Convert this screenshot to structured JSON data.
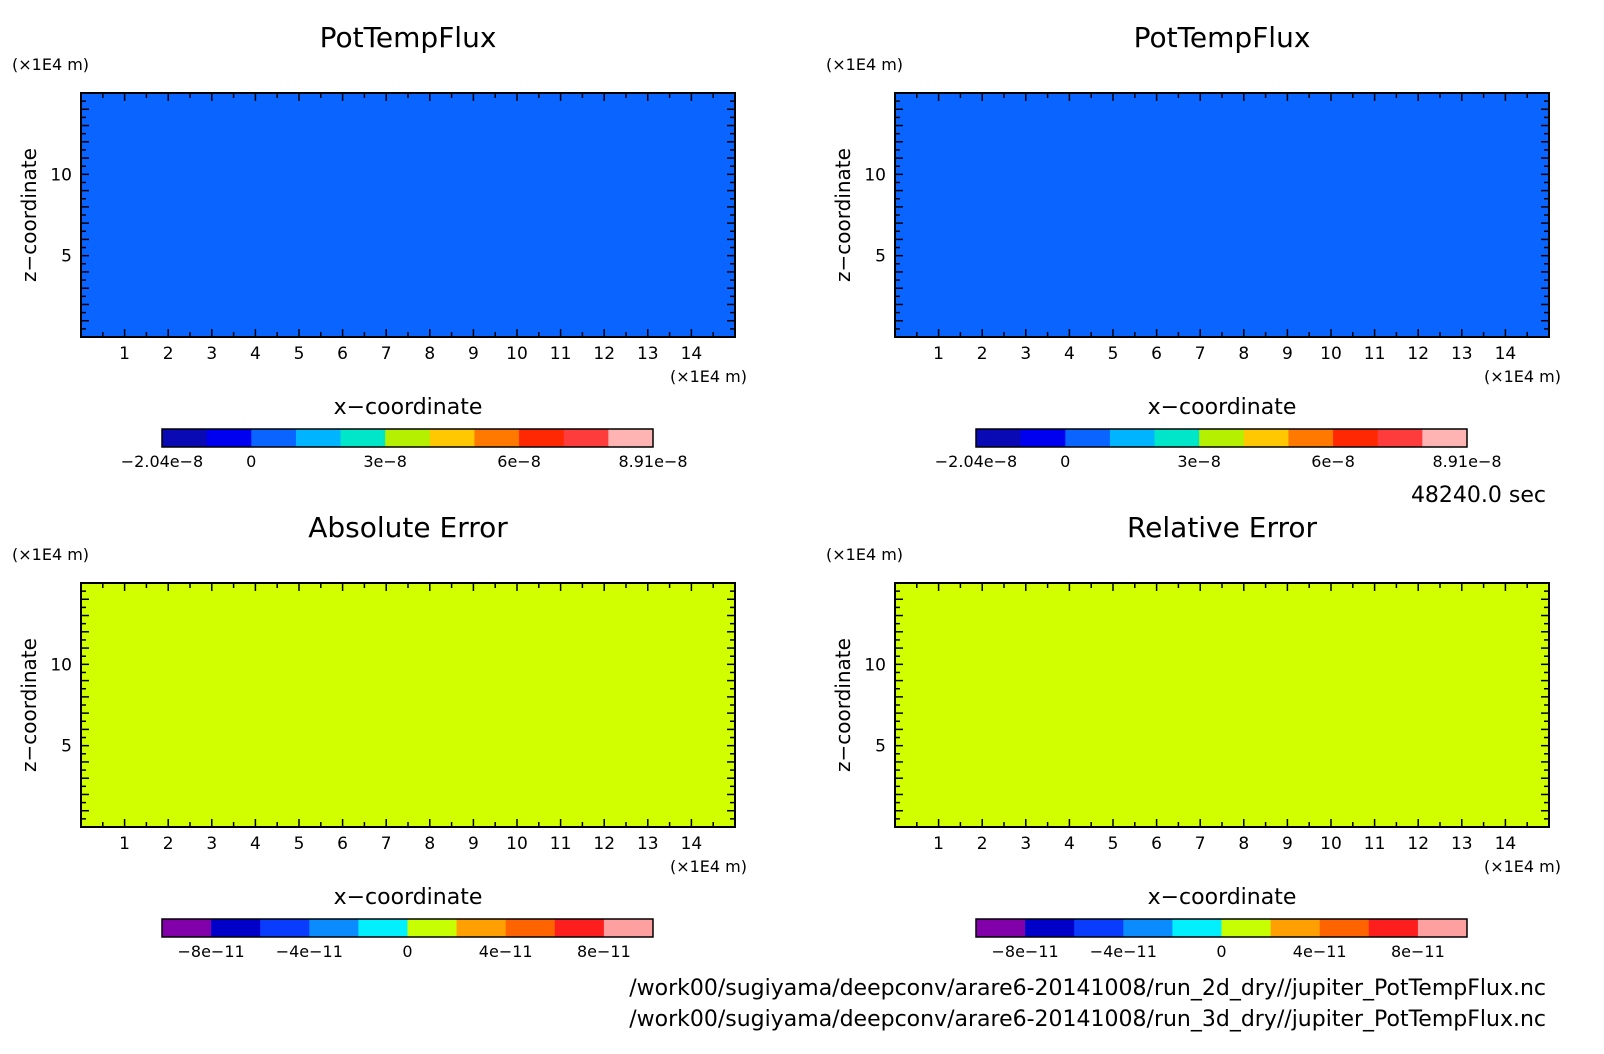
{
  "figure": {
    "time_label": "48240.0 sec",
    "files": [
      "/work00/sugiyama/deepconv/arare6-20141008/run_2d_dry//jupiter_PotTempFlux.nc",
      "/work00/sugiyama/deepconv/arare6-20141008/run_3d_dry//jupiter_PotTempFlux.nc"
    ]
  },
  "chart_data": [
    {
      "type": "heatmap",
      "title": "PotTempFlux",
      "xlabel": "x−coordinate",
      "ylabel": "z−coordinate",
      "x_unit": "(×1E4 m)",
      "y_unit": "(×1E4 m)",
      "xlim": [
        0,
        15
      ],
      "ylim": [
        0,
        15
      ],
      "x_ticks": [
        "1",
        "2",
        "3",
        "4",
        "5",
        "6",
        "7",
        "8",
        "9",
        "10",
        "11",
        "12",
        "13",
        "14"
      ],
      "y_ticks": [
        "5",
        "10"
      ],
      "fill_value": 0.0,
      "fill_color": "#0a64ff",
      "colorbar": {
        "colors": [
          "#0a0ab4",
          "#0000f0",
          "#0a64ff",
          "#00b4ff",
          "#00e6c8",
          "#b4f000",
          "#ffc800",
          "#ff7800",
          "#ff2800",
          "#ff3c3c",
          "#ffb4b4"
        ],
        "tick_labels": [
          "−2.04e−8",
          "0",
          "3e−8",
          "6e−8",
          "8.91e−8"
        ],
        "tick_index": [
          0,
          2,
          5,
          8,
          11
        ]
      }
    },
    {
      "type": "heatmap",
      "title": "PotTempFlux",
      "xlabel": "x−coordinate",
      "ylabel": "z−coordinate",
      "x_unit": "(×1E4 m)",
      "y_unit": "(×1E4 m)",
      "xlim": [
        0,
        15
      ],
      "ylim": [
        0,
        15
      ],
      "x_ticks": [
        "1",
        "2",
        "3",
        "4",
        "5",
        "6",
        "7",
        "8",
        "9",
        "10",
        "11",
        "12",
        "13",
        "14"
      ],
      "y_ticks": [
        "5",
        "10"
      ],
      "fill_value": 0.0,
      "fill_color": "#0a64ff",
      "colorbar": {
        "colors": [
          "#0a0ab4",
          "#0000f0",
          "#0a64ff",
          "#00b4ff",
          "#00e6c8",
          "#b4f000",
          "#ffc800",
          "#ff7800",
          "#ff2800",
          "#ff3c3c",
          "#ffb4b4"
        ],
        "tick_labels": [
          "−2.04e−8",
          "0",
          "3e−8",
          "6e−8",
          "8.91e−8"
        ],
        "tick_index": [
          0,
          2,
          5,
          8,
          11
        ]
      }
    },
    {
      "type": "heatmap",
      "title": "Absolute Error",
      "xlabel": "x−coordinate",
      "ylabel": "z−coordinate",
      "x_unit": "(×1E4 m)",
      "y_unit": "(×1E4 m)",
      "xlim": [
        0,
        15
      ],
      "ylim": [
        0,
        15
      ],
      "x_ticks": [
        "1",
        "2",
        "3",
        "4",
        "5",
        "6",
        "7",
        "8",
        "9",
        "10",
        "11",
        "12",
        "13",
        "14"
      ],
      "y_ticks": [
        "5",
        "10"
      ],
      "fill_value": 0.0,
      "fill_color": "#d2ff00",
      "colorbar": {
        "colors": [
          "#8200aa",
          "#0000c8",
          "#0a3cff",
          "#0a8cff",
          "#00f0ff",
          "#c8ff00",
          "#ffa000",
          "#ff6400",
          "#ff1e1e",
          "#ffa0a0"
        ],
        "tick_labels": [
          "−8e−11",
          "−4e−11",
          "0",
          "4e−11",
          "8e−11"
        ],
        "tick_index": [
          1,
          3,
          5,
          7,
          9
        ]
      }
    },
    {
      "type": "heatmap",
      "title": "Relative Error",
      "xlabel": "x−coordinate",
      "ylabel": "z−coordinate",
      "x_unit": "(×1E4 m)",
      "y_unit": "(×1E4 m)",
      "xlim": [
        0,
        15
      ],
      "ylim": [
        0,
        15
      ],
      "x_ticks": [
        "1",
        "2",
        "3",
        "4",
        "5",
        "6",
        "7",
        "8",
        "9",
        "10",
        "11",
        "12",
        "13",
        "14"
      ],
      "y_ticks": [
        "5",
        "10"
      ],
      "fill_value": 0.0,
      "fill_color": "#d2ff00",
      "colorbar": {
        "colors": [
          "#8200aa",
          "#0000c8",
          "#0a3cff",
          "#0a8cff",
          "#00f0ff",
          "#c8ff00",
          "#ffa000",
          "#ff6400",
          "#ff1e1e",
          "#ffa0a0"
        ],
        "tick_labels": [
          "−8e−11",
          "−4e−11",
          "0",
          "4e−11",
          "8e−11"
        ],
        "tick_index": [
          1,
          3,
          5,
          7,
          9
        ]
      }
    }
  ]
}
